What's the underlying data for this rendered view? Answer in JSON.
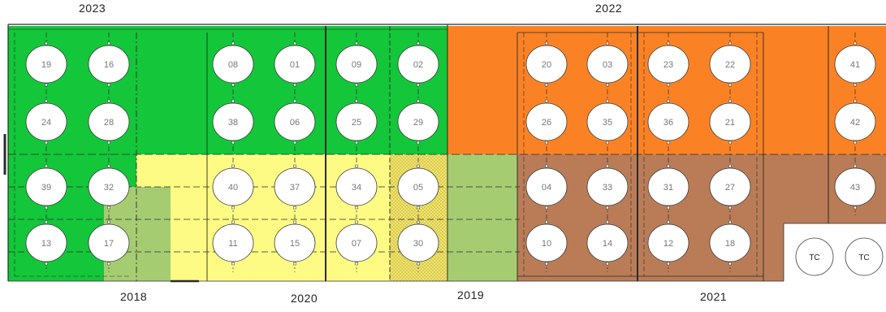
{
  "year_labels": {
    "top_left": "2023",
    "top_right": "2022",
    "bottom_1": "2018",
    "bottom_2": "2020",
    "bottom_3": "2019",
    "bottom_4": "2021"
  },
  "colors": {
    "green_2023": "#13c63a",
    "orange_2022": "#fb8224",
    "yellow_2020": "#fdfb83",
    "olive_2018_2019": "#a6cc72",
    "brown_2021": "#b97c57",
    "dotted_patch": "#f0e46a",
    "circle_fill": "#ffffff",
    "line": "#2b2b2b"
  },
  "circles": [
    {
      "label": "19"
    },
    {
      "label": "16"
    },
    {
      "label": "08"
    },
    {
      "label": "01"
    },
    {
      "label": "09"
    },
    {
      "label": "02"
    },
    {
      "label": "20"
    },
    {
      "label": "03"
    },
    {
      "label": "23"
    },
    {
      "label": "22"
    },
    {
      "label": "41"
    },
    {
      "label": "24"
    },
    {
      "label": "28"
    },
    {
      "label": "38"
    },
    {
      "label": "06"
    },
    {
      "label": "25"
    },
    {
      "label": "29"
    },
    {
      "label": "26"
    },
    {
      "label": "35"
    },
    {
      "label": "36"
    },
    {
      "label": "21"
    },
    {
      "label": "42"
    },
    {
      "label": "39"
    },
    {
      "label": "32"
    },
    {
      "label": "40"
    },
    {
      "label": "37"
    },
    {
      "label": "34"
    },
    {
      "label": "05"
    },
    {
      "label": "04"
    },
    {
      "label": "33"
    },
    {
      "label": "31"
    },
    {
      "label": "27"
    },
    {
      "label": "43"
    },
    {
      "label": "13"
    },
    {
      "label": "17"
    },
    {
      "label": "11"
    },
    {
      "label": "15"
    },
    {
      "label": "07"
    },
    {
      "label": "30"
    },
    {
      "label": "10"
    },
    {
      "label": "14"
    },
    {
      "label": "12"
    },
    {
      "label": "18"
    },
    {
      "label": "TC"
    },
    {
      "label": "TC"
    }
  ]
}
